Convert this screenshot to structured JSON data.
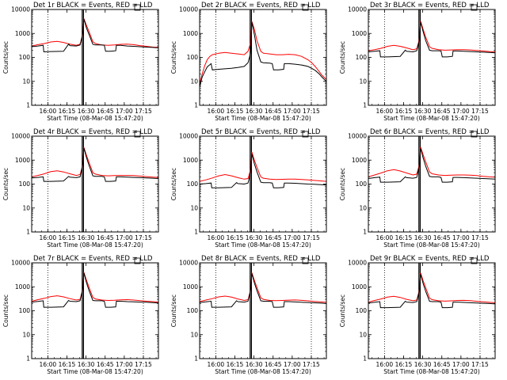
{
  "chart_data": {
    "type": "line",
    "layout": "3x3 grid of small multiples",
    "shared": {
      "ylabel": "Counts/sec",
      "xlabel": "Start Time (08-Mar-08 15:47:20)",
      "x_ticks": [
        "16:00",
        "16:15",
        "16:30",
        "16:45",
        "17:00",
        "17:15"
      ],
      "x_tick_minutes": [
        12.67,
        27.67,
        42.67,
        57.67,
        72.67,
        87.67
      ],
      "xlim_minutes": [
        0,
        99.5
      ],
      "y_scale": "log",
      "ylim": [
        1,
        10000
      ],
      "y_ticks": [
        "1",
        "10",
        "100",
        "1000",
        "10000"
      ],
      "y_tick_values": [
        1,
        10,
        100,
        1000,
        10000
      ],
      "vertical_dotted_lines_at": [
        "16:00",
        "17:15"
      ],
      "vertical_solid_lines_at": [
        "16:27",
        "16:28"
      ],
      "series_colors": {
        "events": "#000000",
        "lld": "#ff0000"
      }
    },
    "panels": [
      {
        "title": "Det 1r BLACK = Events, RED = LLD",
        "events": {
          "x": [
            0,
            5,
            9,
            9.5,
            15,
            25,
            29,
            30,
            35,
            38,
            40,
            41,
            43,
            45,
            48,
            50,
            55,
            57,
            58,
            62,
            66,
            66.5,
            70,
            75,
            80,
            85,
            90,
            95,
            99.5
          ],
          "y": [
            280,
            300,
            320,
            170,
            175,
            180,
            360,
            310,
            300,
            330,
            900,
            4000,
            1700,
            900,
            350,
            330,
            330,
            320,
            180,
            180,
            190,
            320,
            320,
            300,
            290,
            280,
            270,
            260,
            250
          ]
        },
        "lld": {
          "x": [
            0,
            5,
            10,
            15,
            20,
            25,
            30,
            35,
            38,
            40,
            41,
            43,
            45,
            48,
            50,
            55,
            60,
            65,
            70,
            75,
            80,
            85,
            90,
            95,
            99.5
          ],
          "y": [
            300,
            340,
            380,
            440,
            470,
            420,
            360,
            320,
            360,
            900,
            4200,
            2200,
            1200,
            450,
            380,
            330,
            320,
            330,
            350,
            360,
            340,
            310,
            290,
            270,
            260
          ]
        }
      },
      {
        "title": "Det 2r BLACK = Events, RED = LLD",
        "events": {
          "x": [
            0,
            2,
            4,
            6,
            9,
            10,
            15,
            25,
            30,
            35,
            38,
            40,
            41,
            43,
            45,
            48,
            50,
            55,
            57,
            58,
            62,
            66,
            66.5,
            70,
            75,
            80,
            85,
            88,
            91,
            94,
            96,
            99.5
          ],
          "y": [
            6,
            15,
            25,
            40,
            55,
            30,
            32,
            35,
            38,
            42,
            60,
            150,
            3000,
            900,
            200,
            65,
            60,
            58,
            55,
            30,
            30,
            32,
            55,
            55,
            52,
            48,
            42,
            35,
            28,
            20,
            15,
            10
          ]
        },
        "lld": {
          "x": [
            0,
            2,
            4,
            6,
            8,
            10,
            15,
            20,
            25,
            30,
            35,
            38,
            40,
            41,
            43,
            45,
            48,
            50,
            55,
            60,
            65,
            70,
            75,
            80,
            85,
            88,
            91,
            94,
            96,
            99.5
          ],
          "y": [
            8,
            20,
            45,
            80,
            110,
            130,
            150,
            160,
            150,
            140,
            130,
            180,
            400,
            3200,
            1500,
            500,
            180,
            150,
            140,
            130,
            130,
            135,
            130,
            110,
            80,
            60,
            40,
            25,
            18,
            12
          ]
        }
      },
      {
        "title": "Det 3r BLACK = Events, RED = LLD",
        "events": {
          "x": [
            0,
            5,
            9,
            9.5,
            15,
            25,
            29,
            30,
            35,
            38,
            40,
            41,
            43,
            45,
            48,
            50,
            55,
            57,
            58,
            62,
            66,
            66.5,
            70,
            75,
            80,
            85,
            90,
            95,
            99.5
          ],
          "y": [
            170,
            180,
            190,
            105,
            105,
            110,
            200,
            180,
            170,
            190,
            500,
            3000,
            1200,
            500,
            200,
            190,
            190,
            185,
            105,
            105,
            110,
            185,
            185,
            180,
            175,
            170,
            165,
            160,
            155
          ]
        },
        "lld": {
          "x": [
            0,
            5,
            10,
            15,
            20,
            25,
            30,
            35,
            38,
            40,
            41,
            43,
            45,
            48,
            50,
            55,
            60,
            65,
            70,
            75,
            80,
            85,
            90,
            95,
            99.5
          ],
          "y": [
            190,
            210,
            240,
            290,
            320,
            290,
            250,
            210,
            230,
            560,
            3300,
            1500,
            700,
            280,
            240,
            210,
            200,
            205,
            210,
            210,
            205,
            195,
            185,
            175,
            170
          ]
        }
      },
      {
        "title": "Det 4r BLACK = Events, RED = LLD",
        "events": {
          "x": [
            0,
            5,
            9,
            9.5,
            15,
            25,
            29,
            30,
            35,
            38,
            40,
            41,
            43,
            45,
            48,
            50,
            55,
            57,
            58,
            62,
            66,
            66.5,
            70,
            75,
            80,
            85,
            90,
            95,
            99.5
          ],
          "y": [
            180,
            190,
            200,
            130,
            130,
            135,
            210,
            195,
            185,
            200,
            600,
            3200,
            1300,
            600,
            220,
            210,
            210,
            200,
            130,
            130,
            135,
            200,
            200,
            195,
            190,
            185,
            180,
            175,
            170
          ]
        },
        "lld": {
          "x": [
            0,
            5,
            10,
            15,
            20,
            25,
            30,
            35,
            38,
            40,
            41,
            43,
            45,
            48,
            50,
            55,
            60,
            65,
            70,
            75,
            80,
            85,
            90,
            95,
            99.5
          ],
          "y": [
            200,
            230,
            270,
            330,
            360,
            320,
            270,
            230,
            250,
            600,
            3400,
            1600,
            800,
            300,
            260,
            230,
            220,
            225,
            230,
            230,
            225,
            215,
            205,
            195,
            190
          ]
        }
      },
      {
        "title": "Det 5r BLACK = Events, RED = LLD",
        "events": {
          "x": [
            0,
            5,
            9,
            9.5,
            15,
            25,
            29,
            30,
            35,
            38,
            40,
            41,
            43,
            45,
            48,
            50,
            55,
            57,
            58,
            62,
            66,
            66.5,
            70,
            75,
            80,
            85,
            90,
            95,
            99.5
          ],
          "y": [
            100,
            105,
            110,
            70,
            70,
            72,
            115,
            105,
            100,
            110,
            300,
            1800,
            700,
            320,
            120,
            115,
            115,
            110,
            70,
            70,
            72,
            110,
            110,
            108,
            104,
            100,
            98,
            95,
            92
          ]
        },
        "lld": {
          "x": [
            0,
            5,
            10,
            15,
            20,
            25,
            30,
            35,
            38,
            40,
            41,
            43,
            45,
            48,
            50,
            55,
            60,
            65,
            70,
            75,
            80,
            85,
            90,
            95,
            99.5
          ],
          "y": [
            130,
            150,
            180,
            220,
            250,
            220,
            185,
            160,
            170,
            400,
            2200,
            1000,
            500,
            200,
            175,
            160,
            155,
            158,
            160,
            160,
            155,
            150,
            142,
            136,
            130
          ]
        }
      },
      {
        "title": "Det 6r BLACK = Events, RED = LLD",
        "events": {
          "x": [
            0,
            5,
            9,
            9.5,
            15,
            25,
            29,
            30,
            35,
            38,
            40,
            41,
            43,
            45,
            48,
            50,
            55,
            57,
            58,
            62,
            66,
            66.5,
            70,
            75,
            80,
            85,
            90,
            95,
            99.5
          ],
          "y": [
            170,
            185,
            195,
            120,
            120,
            125,
            200,
            185,
            175,
            190,
            550,
            3100,
            1250,
            550,
            210,
            200,
            200,
            190,
            120,
            120,
            125,
            190,
            190,
            185,
            180,
            175,
            170,
            165,
            160
          ]
        },
        "lld": {
          "x": [
            0,
            5,
            10,
            15,
            20,
            25,
            30,
            35,
            38,
            40,
            41,
            43,
            45,
            48,
            50,
            55,
            60,
            65,
            70,
            75,
            80,
            85,
            90,
            95,
            99.5
          ],
          "y": [
            200,
            240,
            290,
            360,
            400,
            350,
            290,
            240,
            260,
            620,
            3500,
            1700,
            850,
            320,
            270,
            240,
            230,
            235,
            240,
            240,
            235,
            225,
            210,
            200,
            195
          ]
        }
      },
      {
        "title": "Det 7r BLACK = Events, RED = LLD",
        "events": {
          "x": [
            0,
            5,
            9,
            9.5,
            15,
            25,
            29,
            30,
            35,
            38,
            40,
            41,
            43,
            45,
            48,
            50,
            55,
            57,
            58,
            62,
            66,
            66.5,
            70,
            75,
            80,
            85,
            90,
            95,
            99.5
          ],
          "y": [
            230,
            245,
            260,
            140,
            140,
            145,
            270,
            250,
            240,
            260,
            750,
            3800,
            1500,
            700,
            270,
            260,
            260,
            250,
            140,
            140,
            145,
            250,
            250,
            240,
            235,
            230,
            225,
            218,
            210
          ]
        },
        "lld": {
          "x": [
            0,
            5,
            10,
            15,
            20,
            25,
            30,
            35,
            38,
            40,
            41,
            43,
            45,
            48,
            50,
            55,
            60,
            65,
            70,
            75,
            80,
            85,
            90,
            95,
            99.5
          ],
          "y": [
            250,
            290,
            330,
            390,
            420,
            380,
            320,
            280,
            300,
            750,
            4000,
            1900,
            950,
            360,
            310,
            280,
            270,
            275,
            285,
            290,
            280,
            265,
            250,
            240,
            230
          ]
        }
      },
      {
        "title": "Det 8r BLACK = Events, RED = LLD",
        "events": {
          "x": [
            0,
            5,
            9,
            9.5,
            15,
            25,
            29,
            30,
            35,
            38,
            40,
            41,
            43,
            45,
            48,
            50,
            55,
            57,
            58,
            62,
            66,
            66.5,
            70,
            75,
            80,
            85,
            90,
            95,
            99.5
          ],
          "y": [
            220,
            235,
            250,
            140,
            140,
            145,
            260,
            240,
            230,
            250,
            700,
            3600,
            1450,
            680,
            260,
            250,
            250,
            240,
            140,
            140,
            145,
            240,
            240,
            232,
            226,
            220,
            214,
            208,
            200
          ]
        },
        "lld": {
          "x": [
            0,
            5,
            10,
            15,
            20,
            25,
            30,
            35,
            38,
            40,
            41,
            43,
            45,
            48,
            50,
            55,
            60,
            65,
            70,
            75,
            80,
            85,
            90,
            95,
            99.5
          ],
          "y": [
            240,
            280,
            320,
            380,
            410,
            370,
            310,
            270,
            290,
            720,
            3900,
            1850,
            920,
            350,
            300,
            270,
            262,
            268,
            278,
            282,
            272,
            258,
            244,
            232,
            224
          ]
        }
      },
      {
        "title": "Det 9r BLACK = Events, RED = LLD",
        "events": {
          "x": [
            0,
            5,
            9,
            9.5,
            15,
            25,
            29,
            30,
            35,
            38,
            40,
            41,
            43,
            45,
            48,
            50,
            55,
            57,
            58,
            62,
            66,
            66.5,
            70,
            75,
            80,
            85,
            90,
            95,
            99.5
          ],
          "y": [
            210,
            225,
            240,
            135,
            135,
            140,
            250,
            230,
            220,
            240,
            650,
            3400,
            1380,
            640,
            250,
            240,
            240,
            230,
            135,
            135,
            140,
            230,
            230,
            222,
            216,
            210,
            205,
            200,
            192
          ]
        },
        "lld": {
          "x": [
            0,
            5,
            10,
            15,
            20,
            25,
            30,
            35,
            38,
            40,
            41,
            43,
            45,
            48,
            50,
            55,
            60,
            65,
            70,
            75,
            80,
            85,
            90,
            95,
            99.5
          ],
          "y": [
            230,
            270,
            310,
            370,
            400,
            360,
            300,
            260,
            280,
            700,
            3800,
            1800,
            900,
            340,
            290,
            260,
            252,
            258,
            268,
            272,
            262,
            248,
            235,
            224,
            216
          ]
        }
      }
    ]
  }
}
